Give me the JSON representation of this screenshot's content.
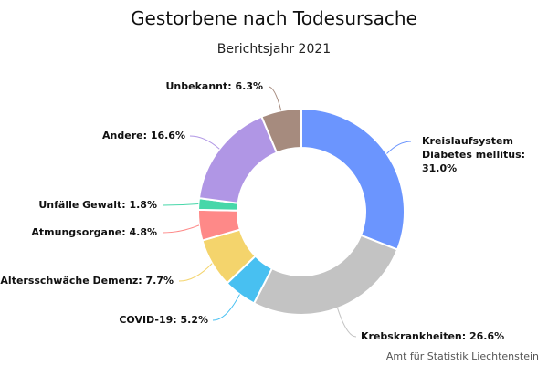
{
  "chart_data": {
    "type": "pie",
    "variant": "donut",
    "title": "Gestorbene nach Todesursache",
    "subtitle": "Berichtsjahr 2021",
    "credit": "Amt für Statistik Liechtenstein",
    "slices": [
      {
        "label_lines": [
          "Kreislaufsystem",
          "Diabetes mellitus:",
          "31.0%"
        ],
        "value": 31.0,
        "color": "#6b95fe"
      },
      {
        "label_lines": [
          "Krebskrankheiten: 26.6%"
        ],
        "value": 26.6,
        "color": "#c3c3c3"
      },
      {
        "label_lines": [
          "COVID-19: 5.2%"
        ],
        "value": 5.2,
        "color": "#48c0f1"
      },
      {
        "label_lines": [
          "Altersschwäche Demenz: 7.7%"
        ],
        "value": 7.7,
        "color": "#f4d46c"
      },
      {
        "label_lines": [
          "Atmungsorgane: 4.8%"
        ],
        "value": 4.8,
        "color": "#fe8988"
      },
      {
        "label_lines": [
          "Unfälle Gewalt: 1.8%"
        ],
        "value": 1.8,
        "color": "#47d7a9"
      },
      {
        "label_lines": [
          "Andere: 16.6%"
        ],
        "value": 16.6,
        "color": "#b096e5"
      },
      {
        "label_lines": [
          "Unbekannt: 6.3%"
        ],
        "value": 6.3,
        "color": "#a68b7e"
      }
    ]
  }
}
